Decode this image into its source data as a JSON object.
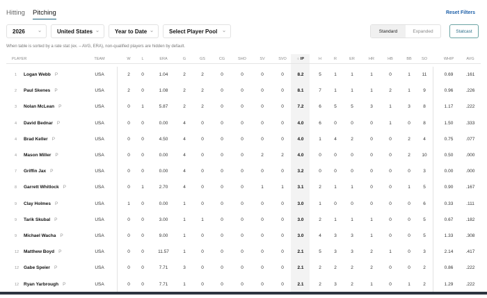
{
  "tabs": [
    {
      "label": "Hitting",
      "active": false
    },
    {
      "label": "Pitching",
      "active": true
    }
  ],
  "filters": {
    "season": "2026",
    "team": "United States",
    "period": "Year to Date",
    "pool": "Select Player Pool"
  },
  "reset_label": "Reset Filters",
  "view_toggle": {
    "standard": "Standard",
    "expanded": "Expanded",
    "selected": "Standard"
  },
  "statcast_label": "Statcast",
  "note": "When table is sorted by a rate stat (ex. – AVG, ERA), non-qualified players are hidden by default.",
  "sort_column": "IP",
  "columns": [
    "PLAYER",
    "TEAM",
    "W",
    "L",
    "ERA",
    "G",
    "GS",
    "CG",
    "SHO",
    "SV",
    "SVO",
    "IP",
    "H",
    "R",
    "ER",
    "HR",
    "HB",
    "BB",
    "SO",
    "WHIP",
    "AVG"
  ],
  "rows": [
    {
      "rank": "1",
      "name": "Logan Webb",
      "pos": "P",
      "team": "USA",
      "stats": [
        "2",
        "0",
        "1.04",
        "2",
        "2",
        "0",
        "0",
        "0",
        "0",
        "8.2",
        "5",
        "1",
        "1",
        "1",
        "0",
        "1",
        "11",
        "0.69",
        ".161"
      ]
    },
    {
      "rank": "2",
      "name": "Paul Skenes",
      "pos": "P",
      "team": "USA",
      "stats": [
        "2",
        "0",
        "1.08",
        "2",
        "2",
        "0",
        "0",
        "0",
        "0",
        "8.1",
        "7",
        "1",
        "1",
        "1",
        "2",
        "1",
        "9",
        "0.96",
        ".226"
      ]
    },
    {
      "rank": "3",
      "name": "Nolan McLean",
      "pos": "P",
      "team": "USA",
      "stats": [
        "0",
        "1",
        "5.87",
        "2",
        "2",
        "0",
        "0",
        "0",
        "0",
        "7.2",
        "6",
        "5",
        "5",
        "3",
        "1",
        "3",
        "8",
        "1.17",
        ".222"
      ]
    },
    {
      "rank": "4",
      "name": "David Bednar",
      "pos": "P",
      "team": "USA",
      "stats": [
        "0",
        "0",
        "0.00",
        "4",
        "0",
        "0",
        "0",
        "0",
        "0",
        "4.0",
        "6",
        "0",
        "0",
        "0",
        "1",
        "0",
        "8",
        "1.50",
        ".333"
      ]
    },
    {
      "rank": "4",
      "name": "Brad Keller",
      "pos": "P",
      "team": "USA",
      "stats": [
        "0",
        "0",
        "4.50",
        "4",
        "0",
        "0",
        "0",
        "0",
        "0",
        "4.0",
        "1",
        "4",
        "2",
        "0",
        "0",
        "2",
        "4",
        "0.75",
        ".077"
      ]
    },
    {
      "rank": "4",
      "name": "Mason Miller",
      "pos": "P",
      "team": "USA",
      "stats": [
        "0",
        "0",
        "0.00",
        "4",
        "0",
        "0",
        "0",
        "2",
        "2",
        "4.0",
        "0",
        "0",
        "0",
        "0",
        "0",
        "2",
        "10",
        "0.50",
        ".000"
      ]
    },
    {
      "rank": "7",
      "name": "Griffin Jax",
      "pos": "P",
      "team": "USA",
      "stats": [
        "0",
        "0",
        "0.00",
        "4",
        "0",
        "0",
        "0",
        "0",
        "0",
        "3.2",
        "0",
        "0",
        "0",
        "0",
        "0",
        "0",
        "3",
        "0.00",
        ".000"
      ]
    },
    {
      "rank": "8",
      "name": "Garrett Whitlock",
      "pos": "P",
      "team": "USA",
      "stats": [
        "0",
        "1",
        "2.70",
        "4",
        "0",
        "0",
        "0",
        "1",
        "1",
        "3.1",
        "2",
        "1",
        "1",
        "0",
        "0",
        "1",
        "5",
        "0.90",
        ".167"
      ]
    },
    {
      "rank": "9",
      "name": "Clay Holmes",
      "pos": "P",
      "team": "USA",
      "stats": [
        "1",
        "0",
        "0.00",
        "1",
        "0",
        "0",
        "0",
        "0",
        "0",
        "3.0",
        "1",
        "0",
        "0",
        "0",
        "0",
        "0",
        "6",
        "0.33",
        ".111"
      ]
    },
    {
      "rank": "9",
      "name": "Tarik Skubal",
      "pos": "P",
      "team": "USA",
      "stats": [
        "0",
        "0",
        "3.00",
        "1",
        "1",
        "0",
        "0",
        "0",
        "0",
        "3.0",
        "2",
        "1",
        "1",
        "1",
        "0",
        "0",
        "5",
        "0.67",
        ".182"
      ]
    },
    {
      "rank": "9",
      "name": "Michael Wacha",
      "pos": "P",
      "team": "USA",
      "stats": [
        "0",
        "0",
        "9.00",
        "1",
        "0",
        "0",
        "0",
        "0",
        "0",
        "3.0",
        "4",
        "3",
        "3",
        "1",
        "0",
        "0",
        "5",
        "1.33",
        ".308"
      ]
    },
    {
      "rank": "12",
      "name": "Matthew Boyd",
      "pos": "P",
      "team": "USA",
      "stats": [
        "0",
        "0",
        "11.57",
        "1",
        "0",
        "0",
        "0",
        "0",
        "0",
        "2.1",
        "5",
        "3",
        "3",
        "2",
        "1",
        "0",
        "3",
        "2.14",
        ".417"
      ]
    },
    {
      "rank": "12",
      "name": "Gabe Speier",
      "pos": "P",
      "team": "USA",
      "stats": [
        "0",
        "0",
        "7.71",
        "3",
        "0",
        "0",
        "0",
        "0",
        "0",
        "2.1",
        "2",
        "2",
        "2",
        "2",
        "0",
        "0",
        "2",
        "0.86",
        ".222"
      ]
    },
    {
      "rank": "12",
      "name": "Ryan Yarbrough",
      "pos": "P",
      "team": "USA",
      "stats": [
        "0",
        "0",
        "7.71",
        "1",
        "0",
        "0",
        "0",
        "0",
        "0",
        "2.1",
        "2",
        "3",
        "2",
        "1",
        "0",
        "1",
        "2",
        "1.29",
        ".222"
      ]
    }
  ]
}
